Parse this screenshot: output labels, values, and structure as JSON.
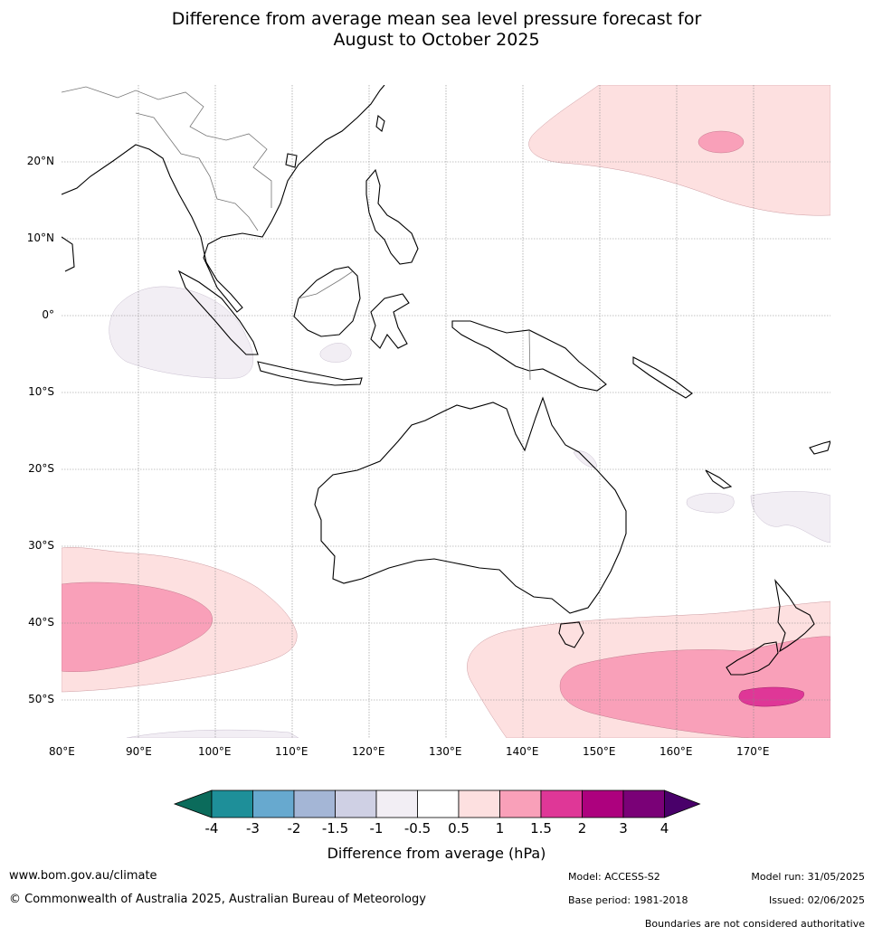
{
  "title_line1": "Difference from average mean sea level pressure forecast for",
  "title_line2": "August to October 2025",
  "lat_labels": [
    "20°N",
    "10°N",
    "0°",
    "10°S",
    "20°S",
    "30°S",
    "40°S",
    "50°S"
  ],
  "lon_labels": [
    "80°E",
    "90°E",
    "100°E",
    "110°E",
    "120°E",
    "130°E",
    "140°E",
    "150°E",
    "160°E",
    "170°E"
  ],
  "colorbar": {
    "ticks": [
      "-4",
      "-3",
      "-2",
      "-1.5",
      "-1",
      "-0.5",
      "0.5",
      "1",
      "1.5",
      "2",
      "3",
      "4"
    ],
    "colors": [
      "#0b6b5b",
      "#1e8f99",
      "#67a9cf",
      "#a4b6d6",
      "#cfd0e4",
      "#f2eef4",
      "#ffffff",
      "#fde0e0",
      "#f9a0b9",
      "#df3797",
      "#ad017e",
      "#7a0177",
      "#49006a"
    ],
    "title": "Difference from average (hPa)"
  },
  "footer": {
    "website": "www.bom.gov.au/climate",
    "copyright": "© Commonwealth of Australia 2025, Australian Bureau of Meteorology",
    "model": "Model: ACCESS-S2",
    "model_run": "Model run: 31/05/2025",
    "base_period": "Base period: 1981-2018",
    "issued": "Issued: 02/06/2025",
    "disclaimer": "Boundaries are not considered authoritative"
  }
}
